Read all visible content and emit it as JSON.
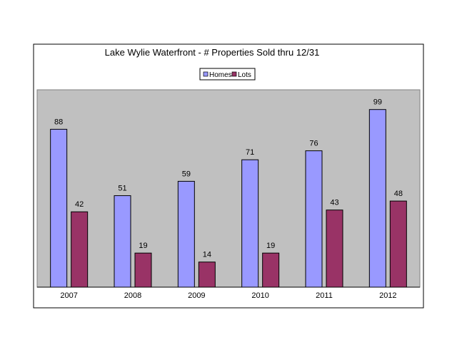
{
  "chart_data": {
    "type": "bar",
    "title": "Lake Wylie Waterfront - # Properties Sold thru 12/31",
    "categories": [
      "2007",
      "2008",
      "2009",
      "2010",
      "2011",
      "2012"
    ],
    "series": [
      {
        "name": "Homes",
        "color": "#9999ff",
        "values": [
          88,
          51,
          59,
          71,
          76,
          99
        ]
      },
      {
        "name": "Lots",
        "color": "#993366",
        "values": [
          42,
          19,
          14,
          19,
          43,
          48
        ]
      }
    ],
    "ylim": [
      0,
      110
    ],
    "grid": false,
    "legend": "top-center",
    "plot_background": "#c0c0c0",
    "xlabel": "",
    "ylabel": ""
  }
}
